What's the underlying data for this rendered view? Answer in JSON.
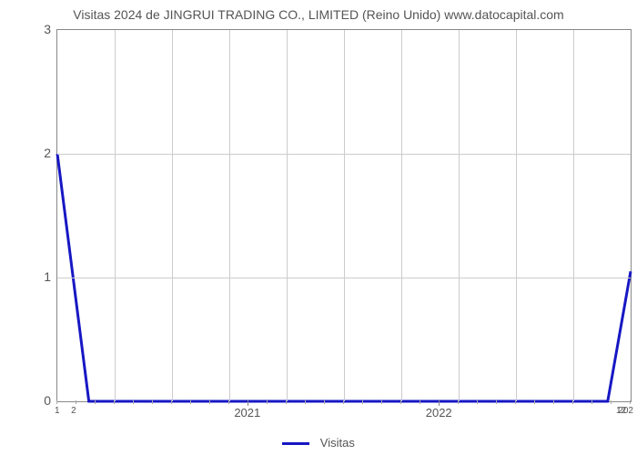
{
  "chart": {
    "type": "line",
    "title": "Visitas 2024 de JINGRUI TRADING CO., LIMITED (Reino Unido) www.datocapital.com",
    "title_fontsize": 14,
    "title_color": "#555555",
    "background_color": "#ffffff",
    "plot_border_color": "#888888",
    "grid_color": "#cccccc",
    "ylabel": "",
    "xlabel": "",
    "ylim": [
      0,
      3
    ],
    "ytick_step": 1,
    "y_ticks": [
      0,
      1,
      2,
      3
    ],
    "x_major_labels": [
      "2021",
      "2022"
    ],
    "x_major_positions": [
      0.333,
      0.667
    ],
    "x_minor_count": 30,
    "x_end_labels": {
      "left1": "1",
      "left2": "2",
      "right1": "12",
      "right2": "202"
    },
    "x_end_positions": {
      "left1": 0.0,
      "left2": 0.03,
      "right1": 0.985,
      "right2": 1.0
    },
    "series": {
      "name": "Visitas",
      "color": "#1717c4",
      "line_width": 3,
      "points": [
        {
          "x": 0.0,
          "y": 2.0
        },
        {
          "x": 0.055,
          "y": 0.0
        },
        {
          "x": 0.96,
          "y": 0.0
        },
        {
          "x": 1.0,
          "y": 1.05
        }
      ]
    },
    "legend": {
      "label": "Visitas",
      "color": "#1717c4",
      "position": "bottom-center",
      "fontsize": 13
    }
  }
}
